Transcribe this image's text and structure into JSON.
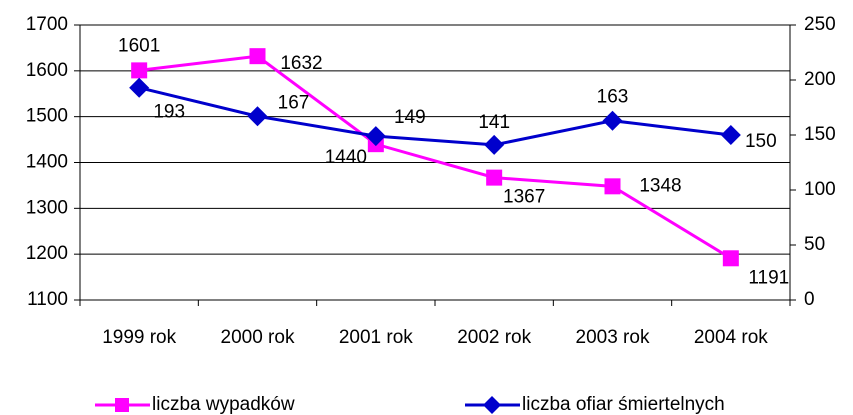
{
  "chart_data": {
    "type": "line",
    "categories": [
      "1999 rok",
      "2000 rok",
      "2001 rok",
      "2002 rok",
      "2003 rok",
      "2004 rok"
    ],
    "series": [
      {
        "name": "liczba wypadków",
        "color": "#ff00ff",
        "marker": "square",
        "values": [
          1601,
          1632,
          1440,
          1367,
          1348,
          1191
        ]
      },
      {
        "name": "liczba ofiar śmiertelnych",
        "color": "#0000cc",
        "marker": "diamond",
        "axis": "y2",
        "values": [
          193,
          167,
          149,
          141,
          163,
          150
        ]
      }
    ],
    "ylim": [
      1100,
      1700
    ],
    "yticks": [
      1100,
      1200,
      1300,
      1400,
      1500,
      1600,
      1700
    ],
    "y2lim": [
      0,
      250
    ],
    "y2ticks": [
      0,
      50,
      100,
      150,
      200,
      250
    ],
    "grid": true,
    "legend": "bottom"
  }
}
